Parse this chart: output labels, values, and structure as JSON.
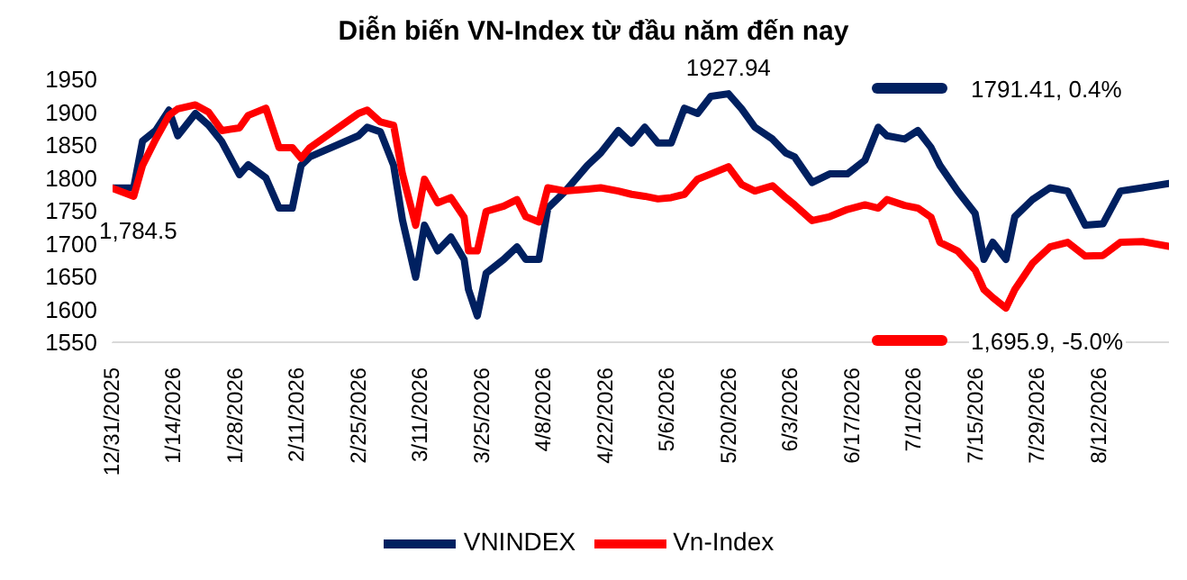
{
  "chart_data": {
    "type": "line",
    "title": "Diễn biến VN-Index từ đầu năm đến nay",
    "x": [
      "2025-12-31",
      "2026-01-05",
      "2026-01-07",
      "2026-01-10",
      "2026-01-13",
      "2026-01-15",
      "2026-01-19",
      "2026-01-22",
      "2026-01-25",
      "2026-01-29",
      "2026-01-31",
      "2026-02-04",
      "2026-02-07",
      "2026-02-10",
      "2026-02-12",
      "2026-02-14",
      "2026-02-25",
      "2026-02-27",
      "2026-03-02",
      "2026-03-05",
      "2026-03-07",
      "2026-03-10",
      "2026-03-12",
      "2026-03-15",
      "2026-03-18",
      "2026-03-21",
      "2026-03-22",
      "2026-03-24",
      "2026-03-26",
      "2026-03-30",
      "2026-04-02",
      "2026-04-04",
      "2026-04-07",
      "2026-04-09",
      "2026-04-13",
      "2026-04-18",
      "2026-04-21",
      "2026-04-25",
      "2026-04-28",
      "2026-05-01",
      "2026-05-04",
      "2026-05-07",
      "2026-05-10",
      "2026-05-13",
      "2026-05-16",
      "2026-05-20",
      "2026-05-23",
      "2026-05-26",
      "2026-05-30",
      "2026-06-02",
      "2026-06-04",
      "2026-06-08",
      "2026-06-12",
      "2026-06-16",
      "2026-06-20",
      "2026-06-23",
      "2026-06-25",
      "2026-06-29",
      "2026-07-02",
      "2026-07-05",
      "2026-07-07",
      "2026-07-11",
      "2026-07-15",
      "2026-07-17",
      "2026-07-19",
      "2026-07-22",
      "2026-07-24",
      "2026-07-28",
      "2026-08-01",
      "2026-08-05",
      "2026-08-09",
      "2026-08-13",
      "2026-08-17",
      "2026-08-22",
      "2026-08-28"
    ],
    "series": [
      {
        "name": "VNINDEX",
        "color": "#002060",
        "values": [
          1784.5,
          1785,
          1856,
          1872,
          1903,
          1864,
          1898,
          1880,
          1855,
          1805,
          1820,
          1800,
          1754,
          1754,
          1819,
          1832,
          1864,
          1877,
          1870,
          1819,
          1736,
          1649,
          1728,
          1689,
          1710,
          1676,
          1630,
          1590,
          1655,
          1676,
          1695,
          1676,
          1676,
          1754,
          1780,
          1819,
          1838,
          1872,
          1853,
          1877,
          1853,
          1853,
          1906,
          1898,
          1924,
          1927.94,
          1905,
          1877,
          1859,
          1838,
          1832,
          1793,
          1806,
          1806,
          1827,
          1877,
          1864,
          1859,
          1872,
          1846,
          1819,
          1780,
          1746,
          1676,
          1702,
          1676,
          1741,
          1767,
          1785,
          1780,
          1728,
          1730,
          1780,
          1785,
          1791.41
        ]
      },
      {
        "name": "Vn-Index",
        "color": "#ff0000",
        "values": [
          1784.5,
          1772,
          1819,
          1859,
          1895,
          1905,
          1911,
          1900,
          1872,
          1876,
          1895,
          1906,
          1846,
          1846,
          1830,
          1846,
          1898,
          1903,
          1885,
          1880,
          1806,
          1728,
          1798,
          1762,
          1770,
          1740,
          1689,
          1689,
          1749,
          1757,
          1767,
          1741,
          1733,
          1785,
          1780,
          1783,
          1785,
          1780,
          1775,
          1772,
          1768,
          1770,
          1775,
          1798,
          1806,
          1817,
          1790,
          1780,
          1788,
          1770,
          1759,
          1735,
          1741,
          1752,
          1759,
          1754,
          1767,
          1758,
          1754,
          1740,
          1702,
          1689,
          1660,
          1630,
          1618,
          1602,
          1630,
          1670,
          1695,
          1702,
          1681,
          1682,
          1702,
          1703,
          1695.9
        ]
      }
    ],
    "xlim": [
      "2025-12-31",
      "2026-08-28"
    ],
    "xticks": [
      {
        "value": "2025-12-31",
        "label": "12/31/2025"
      },
      {
        "value": "2026-01-14",
        "label": "1/14/2026"
      },
      {
        "value": "2026-01-28",
        "label": "1/28/2026"
      },
      {
        "value": "2026-02-11",
        "label": "2/11/2026"
      },
      {
        "value": "2026-02-25",
        "label": "2/25/2026"
      },
      {
        "value": "2026-03-11",
        "label": "3/11/2026"
      },
      {
        "value": "2026-03-25",
        "label": "3/25/2026"
      },
      {
        "value": "2026-04-08",
        "label": "4/8/2026"
      },
      {
        "value": "2026-04-22",
        "label": "4/22/2026"
      },
      {
        "value": "2026-05-06",
        "label": "5/6/2026"
      },
      {
        "value": "2026-05-20",
        "label": "5/20/2026"
      },
      {
        "value": "2026-06-03",
        "label": "6/3/2026"
      },
      {
        "value": "2026-06-17",
        "label": "6/17/2026"
      },
      {
        "value": "2026-07-01",
        "label": "7/1/2026"
      },
      {
        "value": "2026-07-15",
        "label": "7/15/2026"
      },
      {
        "value": "2026-07-29",
        "label": "7/29/2026"
      },
      {
        "value": "2026-08-12",
        "label": "8/12/2026"
      }
    ],
    "ylim": [
      1550,
      1950
    ],
    "yticks": [
      1550,
      1600,
      1650,
      1700,
      1750,
      1800,
      1850,
      1900,
      1950
    ],
    "annotations": [
      {
        "text": "1,784.5",
        "x": "2025-12-31",
        "y": 1784.5
      },
      {
        "text": "1927.94",
        "x": "2026-05-20",
        "y": 1927.94
      },
      "1791.41, 0.4%",
      "1,695.9, -5.0%"
    ],
    "grid": false,
    "legend": "bottom",
    "marker": "none",
    "line_style": "solid"
  }
}
